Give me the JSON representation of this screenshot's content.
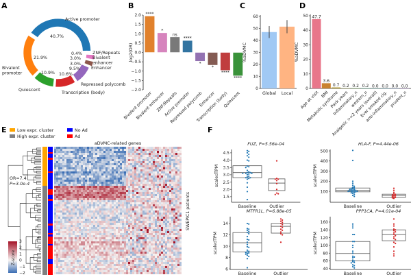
{
  "panels": {
    "a": "A",
    "b": "B",
    "c": "C",
    "d": "D",
    "e": "E",
    "f": "F"
  },
  "chart_data": [
    {
      "panel": "A",
      "type": "pie",
      "style": "donut",
      "slices": [
        {
          "label": "Active promoter",
          "value": 40.7,
          "text": "40.7%",
          "color": "#1f77b4"
        },
        {
          "label": "ZNF/Repeats",
          "value": 0.4,
          "text": "0.4%",
          "color": "#7f7f7f"
        },
        {
          "label": "Bivalent\nenhancer",
          "value": 3.0,
          "text": "3.0%",
          "color": "#e377c2"
        },
        {
          "label": "Enhancer",
          "value": 3.0,
          "text": "3.0%",
          "color": "#8c564b"
        },
        {
          "label": "Repressed polycomb",
          "value": 9.5,
          "text": "9.5%",
          "color": "#9467bd"
        },
        {
          "label": "Transcription (body)",
          "value": 10.6,
          "text": "10.6%",
          "color": "#d62728"
        },
        {
          "label": "Quiescent",
          "value": 10.9,
          "text": "10.9%",
          "color": "#2ca02c"
        },
        {
          "label": "Bivalent\npromoter",
          "value": 21.9,
          "text": "21.9%",
          "color": "#ff7f0e"
        }
      ]
    },
    {
      "panel": "B",
      "type": "bar",
      "ylabel": "log2(OR)",
      "ylim": [
        -2.0,
        2.0
      ],
      "yticks": [
        "2.0",
        "1.5",
        "1.0",
        "0.5",
        "0.0",
        "−0.5",
        "−1.0",
        "−1.5",
        "−2.0"
      ],
      "categories": [
        "Bivalent promoter",
        "Bivalent enhancer",
        "ZNF/Repeats",
        "Active promoter",
        "Repressed polycomb",
        "Enhancer",
        "Transcription (body)",
        "Quiescent"
      ],
      "values": [
        1.95,
        1.05,
        0.83,
        0.64,
        -0.47,
        -0.68,
        -0.96,
        -1.25
      ],
      "significance": [
        "****",
        "*",
        "ns",
        "****",
        "*",
        "*",
        "****",
        "****"
      ],
      "colors": [
        "#e1812c",
        "#d684bd",
        "#797979",
        "#3274a1",
        "#9372b2",
        "#845b53",
        "#c03d3e",
        "#3a923a"
      ]
    },
    {
      "panel": "C",
      "type": "bar",
      "ylabel": "%aDVMC",
      "ylim": [
        0,
        60
      ],
      "yticks": [
        "0",
        "10",
        "20",
        "30",
        "40",
        "50",
        "60"
      ],
      "categories": [
        "Global",
        "Local"
      ],
      "values": [
        47,
        51.5
      ],
      "error_low": [
        42,
        46
      ],
      "error_high": [
        52,
        57
      ],
      "colors": [
        "#a1c9f4",
        "#ffb482"
      ]
    },
    {
      "panel": "D",
      "type": "bar",
      "ylabel": "%aDVMC",
      "ylim": [
        0,
        50
      ],
      "yticks": [
        "0",
        "10",
        "20",
        "30",
        "40",
        "50"
      ],
      "categories": [
        "Age at visit",
        "BMI",
        "Metabolic syndrome",
        "Pack years",
        "Inflammatory_n",
        "western_n",
        "Analgesic >=2 years (overall)",
        "Ever smoked cig.",
        "anti-inflammatory_n",
        "prudent_n"
      ],
      "values": [
        47.7,
        3.6,
        0.7,
        0.2,
        0.2,
        0.2,
        0.0,
        0.0,
        0.0,
        0.0
      ],
      "value_labels": [
        "47.7",
        "3.6",
        "0.7",
        "0.2",
        "0.2",
        "0.2",
        "0.0",
        "0.0",
        "0.0",
        "0.0"
      ],
      "colors": [
        "#e8768a",
        "#c9822f",
        "#b29b34",
        "#96a334",
        "#5fae3a",
        "#36ad7a",
        "#38a9a1",
        "#3aa4c3",
        "#6f95e2",
        "#b07fe6"
      ]
    },
    {
      "panel": "E",
      "type": "heatmap",
      "title": "aDVMC-related genes",
      "ylabel": "SWEPIC1 patients",
      "legend": [
        {
          "label": "Low expr. cluster",
          "color": "#ffa500"
        },
        {
          "label": "High expr. cluster",
          "color": "#808080"
        },
        {
          "label": "No Ad",
          "color": "#0000ff"
        },
        {
          "label": "Ad",
          "color": "#ff0000"
        }
      ],
      "annotation": [
        "OR=7.4",
        "P=3.0e-4"
      ],
      "colorbar": {
        "label": "Z-score",
        "ticks": [
          "3",
          "2",
          "1",
          "0",
          "−1",
          "−2"
        ],
        "range": [
          -2,
          3
        ],
        "colormap": "RdBu_r"
      }
    },
    {
      "panel": "F",
      "type": "scatter",
      "style": "box+swarm",
      "ylabel": "scaledTPM",
      "categories": [
        "Baseline",
        "Outlier"
      ],
      "colors": [
        "#1f77b4",
        "#d62728"
      ],
      "subplots": [
        {
          "title": "FUZ, P=5.56e-04",
          "ylim": [
            1.12,
            4.73
          ],
          "yticks": [
            1.5,
            2.0,
            2.5,
            3.0,
            3.5,
            4.0,
            4.5
          ],
          "baseline": [
            4.65,
            4.6,
            4.5,
            4.4,
            4.3,
            4.2,
            4.0,
            3.95,
            3.6,
            3.55,
            3.5,
            3.3,
            3.2,
            3.15,
            3.15,
            3.1,
            3.1,
            3.1,
            3.05,
            3.0,
            2.9,
            2.85,
            2.8,
            2.8,
            2.75,
            2.7,
            2.45,
            2.15,
            1.85,
            1.3
          ],
          "baseline_box": [
            2.8,
            3.15,
            3.62
          ],
          "outlier": [
            3.95,
            2.75,
            2.7,
            2.7,
            2.6,
            2.4,
            2.0,
            1.75,
            1.7,
            1.65
          ],
          "outlier_box": [
            1.92,
            2.43,
            2.72
          ]
        },
        {
          "title": "HLA-F, P=4.44e-06",
          "ylim": [
            -8,
            514
          ],
          "yticks": [
            100,
            200,
            300,
            400,
            500
          ],
          "baseline": [
            505,
            405,
            200,
            180,
            160,
            150,
            140,
            135,
            130,
            125,
            120,
            120,
            115,
            110,
            110,
            105,
            105,
            100,
            100,
            100,
            95,
            95,
            90,
            85,
            80,
            70,
            60,
            50
          ],
          "baseline_box": [
            95,
            110,
            133
          ],
          "outlier": [
            130,
            110,
            90,
            75,
            70,
            65,
            60,
            55,
            50,
            45,
            40,
            35,
            30
          ],
          "outlier_box": [
            40,
            58,
            72
          ]
        },
        {
          "title": "MTFR1L, P=6.88e-05",
          "ylim": [
            5.9,
            15.2
          ],
          "yticks": [
            6,
            8,
            10,
            12,
            14
          ],
          "baseline": [
            14.0,
            13.9,
            13.1,
            13.0,
            12.8,
            12.6,
            12.4,
            12.2,
            11.7,
            11.2,
            11.1,
            10.7,
            10.3,
            9.9,
            9.8,
            9.3,
            9.1,
            9.0,
            8.9,
            8.8,
            8.7,
            8.6,
            8.4,
            8.2,
            7.8,
            6.2
          ],
          "baseline_box": [
            9.0,
            10.6,
            12.4
          ],
          "outlier": [
            14.8,
            14.6,
            14.4,
            14.2,
            14.0,
            13.8,
            13.5,
            13.3,
            13.0,
            12.8,
            12.5,
            12.2,
            12.0,
            10.7
          ],
          "outlier_box": [
            12.3,
            13.5,
            14.0
          ]
        },
        {
          "title": "PPP1CA, P=4.01e-04",
          "ylim": [
            38,
            174
          ],
          "yticks": [
            40,
            60,
            80,
            100,
            120,
            140,
            160
          ],
          "baseline": [
            155,
            150,
            145,
            128,
            128,
            110,
            110,
            100,
            95,
            85,
            80,
            72,
            70,
            68,
            62,
            60,
            58,
            56,
            55,
            50,
            48,
            45,
            42
          ],
          "baseline_box": [
            60,
            79,
            110
          ],
          "outlier": [
            168,
            155,
            150,
            142,
            140,
            138,
            135,
            132,
            128,
            125,
            122,
            118,
            115,
            108,
            105,
            96,
            85,
            78,
            73
          ],
          "outlier_box": [
            112,
            128,
            140
          ]
        }
      ]
    }
  ]
}
